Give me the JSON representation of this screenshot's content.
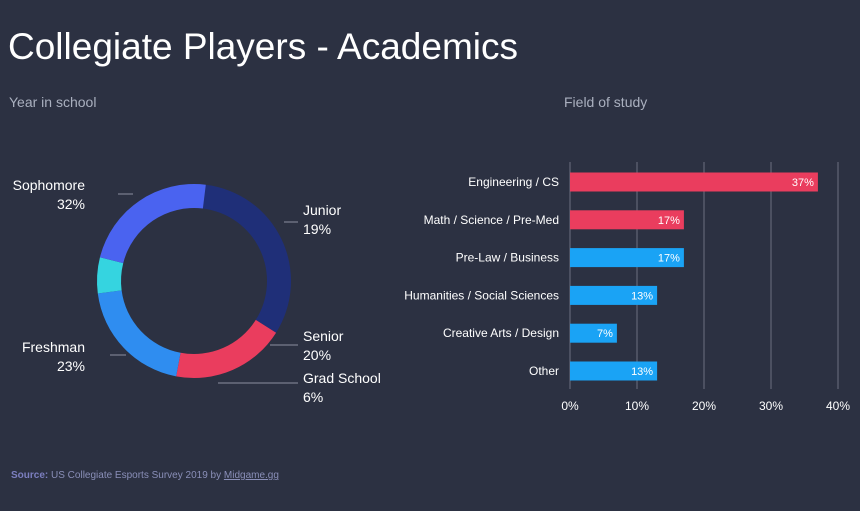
{
  "title": "Collegiate Players - Academics",
  "source": {
    "label": "Source:",
    "text": "US Collegiate Esports Survey 2019 by",
    "link": "Midgame.gg"
  },
  "colors": {
    "background": "#2c3142",
    "freshman": "#4a63f0",
    "sophomore": "#1f2f78",
    "junior": "#ea3d5e",
    "senior": "#2f8df0",
    "grad_school": "#35d4e0",
    "bar_highlight": "#ea3d5e",
    "bar_default": "#1aa3f5"
  },
  "chart_data": [
    {
      "type": "pie",
      "title": "Year in school",
      "donut": true,
      "slices": [
        {
          "label": "Sophomore",
          "value": 32,
          "display": "32%",
          "color": "#1f2f78"
        },
        {
          "label": "Junior",
          "value": 19,
          "display": "19%",
          "color": "#ea3d5e"
        },
        {
          "label": "Senior",
          "value": 20,
          "display": "20%",
          "color": "#2f8df0"
        },
        {
          "label": "Grad School",
          "value": 6,
          "display": "6%",
          "color": "#35d4e0"
        },
        {
          "label": "Freshman",
          "value": 23,
          "display": "23%",
          "color": "#4a63f0"
        }
      ]
    },
    {
      "type": "bar",
      "orientation": "horizontal",
      "title": "Field of study",
      "categories": [
        "Engineering / CS",
        "Math / Science / Pre-Med",
        "Pre-Law / Business",
        "Humanities / Social Sciences",
        "Creative Arts / Design",
        "Other"
      ],
      "values": [
        37,
        17,
        17,
        13,
        7,
        13
      ],
      "value_labels": [
        "37%",
        "17%",
        "17%",
        "13%",
        "7%",
        "13%"
      ],
      "highlighted": [
        true,
        true,
        false,
        false,
        false,
        false
      ],
      "xlim": [
        0,
        40
      ],
      "xticks": [
        "0%",
        "10%",
        "20%",
        "30%",
        "40%"
      ],
      "grid": true
    }
  ]
}
